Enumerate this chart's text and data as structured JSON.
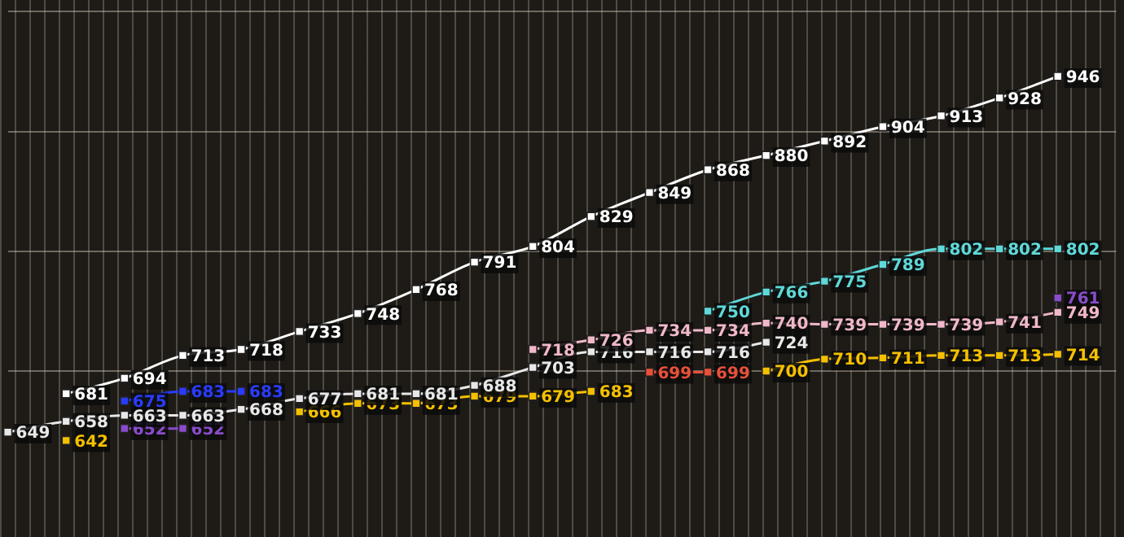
{
  "chart_data": {
    "type": "line",
    "categories": [
      null,
      null,
      null,
      null,
      null,
      null,
      null,
      null,
      null,
      null,
      null,
      null,
      null,
      null,
      null,
      null,
      null,
      null,
      null,
      null
    ],
    "yticks": [
      {
        "value": 700,
        "label": null
      },
      {
        "value": 800,
        "label": null
      },
      {
        "value": 900,
        "label": null
      },
      {
        "value": 1000,
        "label": null
      }
    ],
    "grid": "y",
    "marker": "square",
    "series": [
      {
        "color": "#ffffff",
        "values": [
          null,
          681,
          694,
          713,
          718,
          733,
          748,
          768,
          791,
          804,
          829,
          849,
          868,
          880,
          892,
          904,
          913,
          928,
          946,
          null
        ],
        "value_labels": [
          null,
          "681",
          "694",
          "713",
          "718",
          "733",
          "748",
          "768",
          "791",
          "804",
          "829",
          "849",
          "868",
          "880",
          "892",
          "904",
          "913",
          "928",
          "946",
          null
        ]
      },
      {
        "color": "#5fd8d8",
        "values": [
          null,
          null,
          null,
          null,
          null,
          null,
          null,
          null,
          null,
          null,
          null,
          null,
          750,
          766,
          775,
          789,
          802,
          802,
          802,
          null
        ],
        "value_labels": [
          null,
          null,
          null,
          null,
          null,
          null,
          null,
          null,
          null,
          null,
          null,
          null,
          "750",
          "766",
          "775",
          "789",
          "802",
          "802",
          "802",
          null
        ]
      },
      {
        "color": "#f0b8c8",
        "values": [
          null,
          null,
          null,
          null,
          null,
          null,
          null,
          null,
          null,
          718,
          726,
          734,
          734,
          740,
          739,
          739,
          739,
          741,
          749,
          null
        ],
        "value_labels": [
          null,
          null,
          null,
          null,
          null,
          null,
          null,
          null,
          null,
          "718",
          "726",
          "734",
          "734",
          "740",
          "739",
          "739",
          "739",
          "741",
          "749",
          null
        ]
      },
      {
        "color": "#e8e8e8",
        "values": [
          649,
          658,
          663,
          663,
          668,
          677,
          681,
          681,
          688,
          703,
          716,
          716,
          716,
          724,
          null,
          null,
          null,
          null,
          null,
          null
        ],
        "value_labels": [
          "649",
          "658",
          "663",
          "663",
          "668",
          "677",
          "681",
          "681",
          "688",
          "703",
          "716",
          "716",
          "716",
          "724",
          null,
          null,
          null,
          null,
          null,
          null
        ]
      },
      {
        "color": "#2a3cff",
        "values": [
          null,
          null,
          675,
          683,
          683,
          null,
          null,
          null,
          null,
          null,
          null,
          null,
          null,
          null,
          null,
          null,
          null,
          null,
          null,
          null
        ],
        "value_labels": [
          null,
          null,
          "675",
          "683",
          "683",
          null,
          null,
          null,
          null,
          null,
          null,
          null,
          null,
          null,
          null,
          null,
          null,
          null,
          null,
          null
        ]
      },
      {
        "color": "#8a4ccc",
        "values": [
          null,
          null,
          652,
          652,
          null,
          null,
          null,
          null,
          null,
          null,
          null,
          null,
          null,
          null,
          null,
          null,
          null,
          null,
          761,
          null
        ],
        "value_labels": [
          null,
          null,
          "652",
          "652",
          null,
          null,
          null,
          null,
          null,
          null,
          null,
          null,
          null,
          null,
          null,
          null,
          null,
          null,
          "761",
          null
        ]
      },
      {
        "color": "#e8503a",
        "values": [
          null,
          null,
          null,
          null,
          null,
          null,
          null,
          null,
          null,
          null,
          null,
          699,
          699,
          null,
          null,
          null,
          null,
          null,
          null,
          null
        ],
        "value_labels": [
          null,
          null,
          null,
          null,
          null,
          null,
          null,
          null,
          null,
          null,
          null,
          "699",
          "699",
          null,
          null,
          null,
          null,
          null,
          null,
          null
        ]
      },
      {
        "color": "#f5c000",
        "values": [
          null,
          642,
          null,
          null,
          null,
          666,
          673,
          673,
          679,
          679,
          683,
          null,
          null,
          700,
          710,
          711,
          713,
          713,
          714,
          null
        ],
        "value_labels": [
          null,
          "642",
          null,
          null,
          null,
          "666",
          "673",
          "673",
          "679",
          "679",
          "683",
          null,
          null,
          "700",
          "710",
          "711",
          "713",
          "713",
          "714",
          null
        ]
      }
    ]
  }
}
